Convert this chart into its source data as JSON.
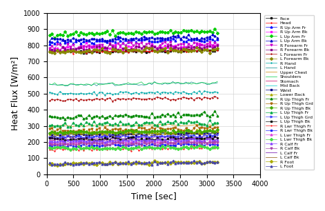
{
  "title": "",
  "xlabel": "Time [sec]",
  "ylabel": "Heat Flux [W/m²]",
  "xlim": [
    0,
    4000
  ],
  "ylim": [
    0,
    1000
  ],
  "xticks": [
    0,
    500,
    1000,
    1500,
    2000,
    2500,
    3000,
    3500,
    4000
  ],
  "yticks": [
    0,
    100,
    200,
    300,
    400,
    500,
    600,
    700,
    800,
    900,
    1000
  ],
  "x_end": 3200,
  "series": [
    {
      "label": "Face",
      "color": "#000000",
      "marker": "s",
      "mean": 760,
      "noise": 5
    },
    {
      "label": "Head",
      "color": "#ff0000",
      "marker": "+",
      "mean": 760,
      "noise": 5
    },
    {
      "label": "R Up Arm Fr",
      "color": "#0000ff",
      "marker": "^",
      "mean": 820,
      "noise": 8
    },
    {
      "label": "R Up Arm Bk",
      "color": "#ff00ff",
      "marker": "s",
      "mean": 780,
      "noise": 8
    },
    {
      "label": "L Up Arm Fr",
      "color": "#00cc00",
      "marker": "D",
      "mean": 870,
      "noise": 8
    },
    {
      "label": "L Up Arm Bk",
      "color": "#0000cc",
      "marker": "^",
      "mean": 835,
      "noise": 8
    },
    {
      "label": "R Forearm Fr",
      "color": "#cc00cc",
      "marker": "v",
      "mean": 790,
      "noise": 10
    },
    {
      "label": "R Forearm Bk",
      "color": "#880088",
      "marker": "s",
      "mean": 775,
      "noise": 8
    },
    {
      "label": "L Forearm Fr",
      "color": "#aa0000",
      "marker": "+",
      "mean": 463,
      "noise": 5
    },
    {
      "label": "L Forearm Bk",
      "color": "#888800",
      "marker": "D",
      "mean": 760,
      "noise": 8
    },
    {
      "label": "R Hand",
      "color": "#00aaaa",
      "marker": "+",
      "mean": 500,
      "noise": 5
    },
    {
      "label": "L Hand",
      "color": "#008888",
      "marker": null,
      "mean": 555,
      "noise": 5
    },
    {
      "label": "Upper Chest",
      "color": "#cc8800",
      "marker": null,
      "mean": 300,
      "noise": 3
    },
    {
      "label": "Shoulders",
      "color": "#00cc44",
      "marker": null,
      "mean": 555,
      "noise": 5
    },
    {
      "label": "Stomach",
      "color": "#cc0066",
      "marker": null,
      "mean": 210,
      "noise": 3
    },
    {
      "label": "Mid Back",
      "color": "#00cccc",
      "marker": null,
      "mean": 250,
      "noise": 3
    },
    {
      "label": "Waist",
      "color": "#000088",
      "marker": "s",
      "mean": 245,
      "noise": 5
    },
    {
      "label": "Lower Back",
      "color": "#aaaa00",
      "marker": "^",
      "mean": 255,
      "noise": 5
    },
    {
      "label": "R Up Thigh Fr",
      "color": "#008800",
      "marker": "^",
      "mean": 355,
      "noise": 8
    },
    {
      "label": "R Up Thigh Grd",
      "color": "#aa6600",
      "marker": "v",
      "mean": 270,
      "noise": 8
    },
    {
      "label": "R Up Thigh Bk",
      "color": "#44aa00",
      "marker": "D",
      "mean": 260,
      "noise": 5
    },
    {
      "label": "L Up Thigh Fr",
      "color": "#00aa44",
      "marker": "^",
      "mean": 305,
      "noise": 8
    },
    {
      "label": "L Up Thigh Grd",
      "color": "#4444ff",
      "marker": ">",
      "mean": 230,
      "noise": 5
    },
    {
      "label": "L Up Thigh Bk",
      "color": "#111111",
      "marker": "s",
      "mean": 215,
      "noise": 5
    },
    {
      "label": "R Lwr Thigh Fr",
      "color": "#ff2222",
      "marker": "+",
      "mean": 155,
      "noise": 5
    },
    {
      "label": "R Lwr Thigh Bk",
      "color": "#2222ff",
      "marker": "s",
      "mean": 175,
      "noise": 5
    },
    {
      "label": "L Lwr Thigh Fr",
      "color": "#dd44dd",
      "marker": "^",
      "mean": 195,
      "noise": 5
    },
    {
      "label": "L Lwr Thigh Bk",
      "color": "#44dd44",
      "marker": "D",
      "mean": 160,
      "noise": 5
    },
    {
      "label": "R Calf Fr",
      "color": "#8844ff",
      "marker": "^",
      "mean": 205,
      "noise": 5
    },
    {
      "label": "R Calf Bk",
      "color": "#aa44aa",
      "marker": "v",
      "mean": 185,
      "noise": 5
    },
    {
      "label": "L Calf Fr",
      "color": "#6600aa",
      "marker": null,
      "mean": 220,
      "noise": 5
    },
    {
      "label": "L Calf Bk",
      "color": "#885500",
      "marker": null,
      "mean": 240,
      "noise": 5
    },
    {
      "label": "R Foot",
      "color": "#aaaa00",
      "marker": "D",
      "mean": 65,
      "noise": 5
    },
    {
      "label": "L Foot",
      "color": "#4444aa",
      "marker": "^",
      "mean": 65,
      "noise": 5
    }
  ],
  "background_color": "#ffffff",
  "grid": true,
  "figsize": [
    4.71,
    3.06
  ],
  "dpi": 100
}
